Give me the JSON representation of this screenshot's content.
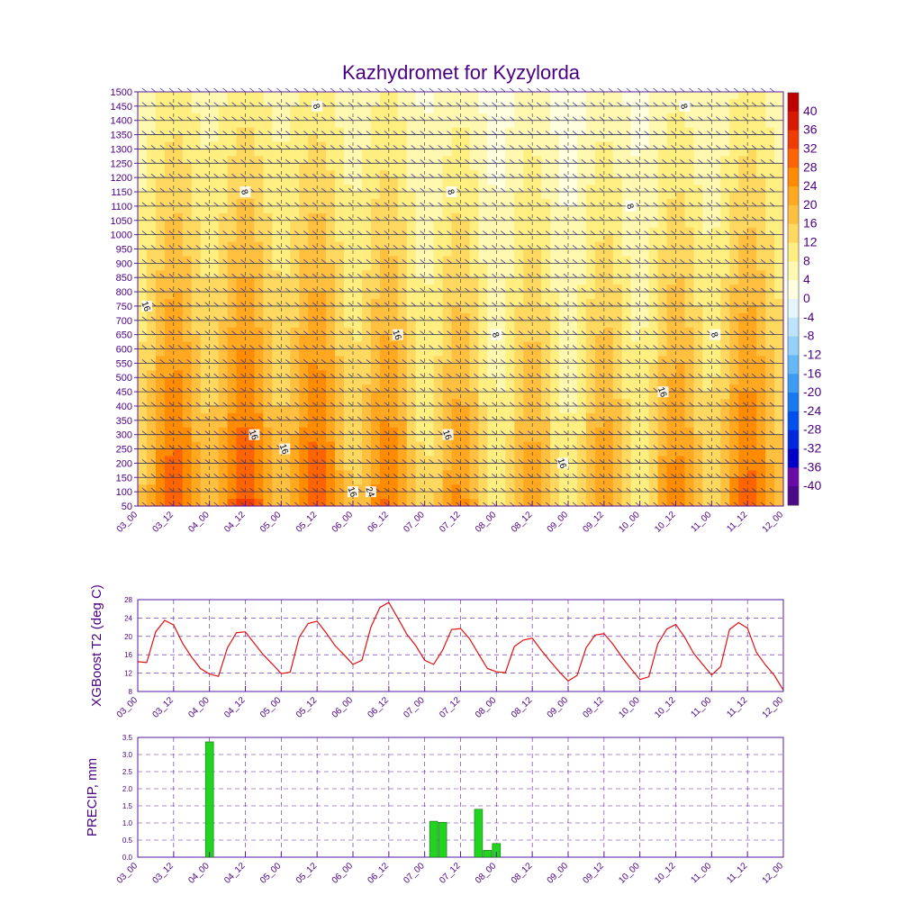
{
  "title": "Kazhydromet for Kyzylorda",
  "colors": {
    "frame": "#5a1aa0",
    "grid": "#5a1aa0",
    "text": "#4b0082",
    "t2_line": "#e01010",
    "precip_bar": "#20d420",
    "contour_line": "#666666",
    "barb": "#3a3a8a"
  },
  "x_ticks": [
    "03_00",
    "03_12",
    "04_00",
    "04_12",
    "05_00",
    "05_12",
    "06_00",
    "06_12",
    "07_00",
    "07_12",
    "08_00",
    "08_12",
    "09_00",
    "09_12",
    "10_00",
    "10_12",
    "11_00",
    "11_12",
    "12_00"
  ],
  "chart_data": [
    {
      "type": "heatmap",
      "title": "Kazhydromet for Kyzylorda",
      "x_ticks": [
        "03_00",
        "03_12",
        "04_00",
        "04_12",
        "05_00",
        "05_12",
        "06_00",
        "06_12",
        "07_00",
        "07_12",
        "08_00",
        "08_12",
        "09_00",
        "09_12",
        "10_00",
        "10_12",
        "11_00",
        "11_12",
        "12_00"
      ],
      "y_ticks": [
        50,
        100,
        150,
        200,
        250,
        300,
        350,
        400,
        450,
        500,
        550,
        600,
        650,
        700,
        750,
        800,
        850,
        900,
        950,
        1000,
        1050,
        1100,
        1150,
        1200,
        1250,
        1300,
        1350,
        1400,
        1450,
        1500
      ],
      "ylim": [
        50,
        1500
      ],
      "colorbar": {
        "labels": [
          40,
          36,
          32,
          28,
          24,
          20,
          16,
          12,
          8,
          4,
          0,
          -4,
          -8,
          -12,
          -16,
          -20,
          -24,
          -28,
          -32,
          -36,
          -40
        ],
        "levels": [
          -44,
          -40,
          -36,
          -32,
          -28,
          -24,
          -20,
          -16,
          -12,
          -8,
          -4,
          0,
          4,
          8,
          12,
          16,
          20,
          24,
          28,
          32,
          36,
          40,
          44
        ],
        "colors": [
          "#4a0a8a",
          "#6a0aa8",
          "#0000c8",
          "#0028e0",
          "#0050f0",
          "#1878f0",
          "#3c9cf4",
          "#64b8f8",
          "#94d0fc",
          "#bce4fc",
          "#e4f6fc",
          "#ffffe0",
          "#fff8b0",
          "#ffee80",
          "#ffd860",
          "#ffc040",
          "#ffa820",
          "#ff8c00",
          "#ff6400",
          "#f03c00",
          "#d81800",
          "#c00000"
        ]
      },
      "contour_labels": [
        {
          "time": 1.0,
          "level": 1450,
          "text": "8"
        },
        {
          "time": 0.6,
          "level": 1150,
          "text": "8"
        },
        {
          "time": 1.75,
          "level": 1150,
          "text": "8"
        },
        {
          "time": 2.0,
          "level": 650,
          "text": "8"
        },
        {
          "time": 2.75,
          "level": 1100,
          "text": "8"
        },
        {
          "time": 3.05,
          "level": 1450,
          "text": "8"
        },
        {
          "time": 3.22,
          "level": 650,
          "text": "8"
        },
        {
          "time": 0.05,
          "level": 750,
          "text": "16"
        },
        {
          "time": 0.65,
          "level": 300,
          "text": "16"
        },
        {
          "time": 0.82,
          "level": 250,
          "text": "16"
        },
        {
          "time": 1.2,
          "level": 100,
          "text": "16"
        },
        {
          "time": 1.45,
          "level": 650,
          "text": "16"
        },
        {
          "time": 1.73,
          "level": 300,
          "text": "16"
        },
        {
          "time": 2.37,
          "level": 200,
          "text": "16"
        },
        {
          "time": 2.93,
          "level": 450,
          "text": "16"
        },
        {
          "time": 1.3,
          "level": 100,
          "text": "24"
        }
      ]
    },
    {
      "type": "line",
      "ylabel": "XGBoost T2 (deg C)",
      "ylim": [
        8,
        28
      ],
      "y_ticks": [
        8,
        12,
        16,
        20,
        24,
        28
      ],
      "x_ticks": [
        "03_00",
        "03_12",
        "04_00",
        "04_12",
        "05_00",
        "05_12",
        "06_00",
        "06_12",
        "07_00",
        "07_12",
        "08_00",
        "08_12",
        "09_00",
        "09_12",
        "10_00",
        "10_12",
        "11_00",
        "11_12",
        "12_00"
      ],
      "x_step_hours": 3,
      "series": [
        {
          "values": [
            14.5,
            14.3,
            21.0,
            23.5,
            22.5,
            18.5,
            15.5,
            13.0,
            11.8,
            11.3,
            17.5,
            20.8,
            21.0,
            18.5,
            16.0,
            14.0,
            11.9,
            12.2,
            19.8,
            22.8,
            23.3,
            20.8,
            18.0,
            16.0,
            13.9,
            14.8,
            22.0,
            26.3,
            27.4,
            24.0,
            20.5,
            18.0,
            14.8,
            13.9,
            17.0,
            21.5,
            21.7,
            19.5,
            16.2,
            13.0,
            12.3,
            12.1,
            17.8,
            19.2,
            19.6,
            17.0,
            14.6,
            12.3,
            10.3,
            11.5,
            17.5,
            20.3,
            20.6,
            18.3,
            15.5,
            13.0,
            10.6,
            11.2,
            18.4,
            21.6,
            22.6,
            19.8,
            16.3,
            13.9,
            11.6,
            13.4,
            21.5,
            23.0,
            21.8,
            16.5,
            13.8,
            11.5,
            8.3
          ]
        }
      ]
    },
    {
      "type": "bar",
      "ylabel": "PRECIP, mm",
      "ylim": [
        0,
        3.5
      ],
      "y_ticks": [
        0.0,
        0.5,
        1.0,
        1.5,
        2.0,
        2.5,
        3.0,
        3.5
      ],
      "x_ticks": [
        "03_00",
        "03_12",
        "04_00",
        "04_12",
        "05_00",
        "05_12",
        "06_00",
        "06_12",
        "07_00",
        "07_12",
        "08_00",
        "08_12",
        "09_00",
        "09_12",
        "10_00",
        "10_12",
        "11_00",
        "11_12",
        "12_00"
      ],
      "x_step_hours": 3,
      "bars": [
        {
          "step": 8,
          "value": 3.37
        },
        {
          "step": 33,
          "value": 1.05
        },
        {
          "step": 34,
          "value": 1.02
        },
        {
          "step": 38,
          "value": 1.4
        },
        {
          "step": 39,
          "value": 0.2
        },
        {
          "step": 40,
          "value": 0.4
        }
      ]
    }
  ]
}
